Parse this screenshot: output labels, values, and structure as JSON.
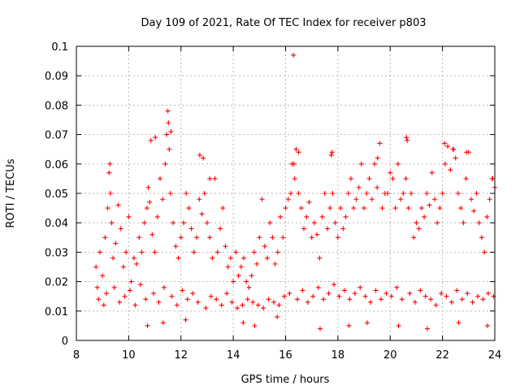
{
  "chart_data": {
    "type": "scatter",
    "title": "Day 109 of 2021, Rate Of TEC Index for receiver p803",
    "xlabel": "GPS time / hours",
    "ylabel": "ROTI / TECUs",
    "xlim": [
      8,
      24
    ],
    "ylim": [
      0,
      0.1
    ],
    "xticks": [
      8,
      10,
      12,
      14,
      16,
      18,
      20,
      22,
      24
    ],
    "yticks": [
      0,
      0.01,
      0.02,
      0.03,
      0.04,
      0.05,
      0.06,
      0.07,
      0.08,
      0.09,
      0.1
    ],
    "xtick_labels": [
      "8",
      "10",
      "12",
      "14",
      "16",
      "18",
      "20",
      "22",
      "24"
    ],
    "ytick_labels": [
      "0",
      "0.01",
      "0.02",
      "0.03",
      "0.04",
      "0.05",
      "0.06",
      "0.07",
      "0.08",
      "0.09",
      "0.1"
    ],
    "grid": true,
    "marker": "plus",
    "series_color": "#ff0000",
    "series": [
      {
        "x": [
          8.75,
          8.8,
          8.9,
          9.0,
          9.1,
          9.2,
          9.25,
          9.3,
          9.35,
          9.4,
          9.5,
          9.6,
          9.7,
          9.8,
          9.9,
          10.0,
          10.1,
          10.2,
          10.3,
          10.4,
          10.5,
          10.6,
          10.7,
          10.75,
          10.8,
          10.85,
          10.9,
          11.0,
          11.1,
          11.2,
          11.3,
          11.4,
          11.45,
          11.5,
          11.55,
          11.6,
          11.7,
          11.8,
          11.9,
          12.0,
          12.1,
          12.2,
          12.3,
          12.4,
          12.5,
          12.6,
          12.7,
          12.8,
          12.85,
          12.9,
          13.0,
          13.1,
          13.2,
          13.3,
          13.4,
          13.5,
          13.6,
          13.7,
          13.8,
          13.9,
          14.0,
          14.1,
          14.2,
          14.3,
          14.4,
          14.5,
          14.6,
          14.7,
          14.8,
          14.9,
          15.0,
          15.1,
          15.2,
          15.3,
          15.4,
          15.5,
          15.6,
          15.7,
          15.8,
          15.9,
          16.0,
          16.1,
          16.2,
          16.25,
          16.3,
          16.35,
          16.4,
          16.5,
          16.6,
          16.7,
          16.8,
          16.9,
          17.0,
          17.1,
          17.2,
          17.3,
          17.4,
          17.5,
          17.6,
          17.7,
          17.75,
          17.8,
          17.9,
          18.0,
          18.1,
          18.2,
          18.3,
          18.4,
          18.5,
          18.6,
          18.7,
          18.8,
          18.9,
          19.0,
          19.1,
          19.2,
          19.3,
          19.4,
          19.5,
          19.6,
          19.7,
          19.8,
          19.9,
          20.0,
          20.1,
          20.2,
          20.3,
          20.4,
          20.5,
          20.6,
          20.65,
          20.7,
          20.8,
          20.9,
          21.0,
          21.1,
          21.2,
          21.3,
          21.4,
          21.5,
          21.6,
          21.7,
          21.8,
          21.9,
          22.0,
          22.1,
          22.2,
          22.3,
          22.4,
          22.5,
          22.6,
          22.7,
          22.8,
          22.9,
          23.0,
          23.1,
          23.2,
          23.3,
          23.4,
          23.5,
          23.6,
          23.7,
          23.8,
          23.9,
          24.0,
          8.85,
          9.05,
          9.15,
          9.45,
          9.65,
          9.85,
          10.05,
          10.25,
          10.45,
          10.65,
          10.95,
          11.15,
          11.35,
          11.65,
          11.85,
          12.05,
          12.25,
          12.45,
          12.65,
          12.95,
          13.15,
          13.35,
          13.55,
          13.75,
          13.95,
          14.15,
          14.35,
          14.55,
          14.75,
          14.95,
          15.15,
          15.35,
          15.55,
          15.75,
          15.95,
          16.15,
          16.45,
          16.65,
          16.85,
          17.05,
          17.25,
          17.45,
          17.65,
          17.85,
          18.05,
          18.25,
          18.45,
          18.65,
          18.85,
          19.05,
          19.25,
          19.45,
          19.65,
          19.85,
          20.05,
          20.25,
          20.45,
          20.75,
          20.95,
          21.15,
          21.35,
          21.55,
          21.75,
          21.95,
          22.15,
          22.35,
          22.55,
          22.75,
          22.95,
          23.15,
          23.35,
          23.55,
          23.75,
          23.95,
          9.28,
          11.02,
          11.52,
          11.62,
          12.72,
          13.1,
          16.32,
          16.5,
          17.78,
          19.52,
          20.62,
          22.08,
          22.42,
          22.92,
          23.92,
          10.72,
          11.32,
          12.18,
          14.38,
          14.82,
          15.68,
          17.32,
          18.42,
          19.12,
          20.32,
          21.42,
          22.62,
          23.72
        ],
        "y": [
          0.025,
          0.018,
          0.03,
          0.022,
          0.035,
          0.045,
          0.057,
          0.05,
          0.04,
          0.028,
          0.033,
          0.046,
          0.038,
          0.025,
          0.03,
          0.042,
          0.02,
          0.028,
          0.026,
          0.035,
          0.03,
          0.04,
          0.045,
          0.052,
          0.047,
          0.068,
          0.036,
          0.03,
          0.042,
          0.055,
          0.048,
          0.06,
          0.07,
          0.078,
          0.065,
          0.05,
          0.04,
          0.032,
          0.028,
          0.035,
          0.04,
          0.05,
          0.045,
          0.038,
          0.03,
          0.035,
          0.048,
          0.043,
          0.062,
          0.05,
          0.04,
          0.035,
          0.028,
          0.055,
          0.03,
          0.038,
          0.045,
          0.032,
          0.025,
          0.028,
          0.02,
          0.03,
          0.022,
          0.025,
          0.028,
          0.02,
          0.018,
          0.022,
          0.03,
          0.026,
          0.035,
          0.048,
          0.032,
          0.028,
          0.04,
          0.035,
          0.026,
          0.03,
          0.042,
          0.035,
          0.045,
          0.048,
          0.05,
          0.06,
          0.097,
          0.055,
          0.065,
          0.05,
          0.045,
          0.038,
          0.042,
          0.047,
          0.035,
          0.04,
          0.036,
          0.028,
          0.042,
          0.05,
          0.038,
          0.045,
          0.063,
          0.05,
          0.04,
          0.035,
          0.045,
          0.038,
          0.042,
          0.05,
          0.055,
          0.045,
          0.048,
          0.052,
          0.06,
          0.045,
          0.05,
          0.055,
          0.048,
          0.06,
          0.052,
          0.067,
          0.045,
          0.05,
          0.05,
          0.057,
          0.055,
          0.045,
          0.06,
          0.048,
          0.05,
          0.055,
          0.068,
          0.045,
          0.05,
          0.035,
          0.04,
          0.038,
          0.045,
          0.042,
          0.05,
          0.046,
          0.057,
          0.048,
          0.04,
          0.045,
          0.05,
          0.06,
          0.066,
          0.058,
          0.065,
          0.062,
          0.05,
          0.045,
          0.04,
          0.055,
          0.064,
          0.048,
          0.044,
          0.05,
          0.04,
          0.035,
          0.03,
          0.042,
          0.048,
          0.055,
          0.052,
          0.014,
          0.012,
          0.016,
          0.018,
          0.013,
          0.015,
          0.017,
          0.012,
          0.019,
          0.014,
          0.016,
          0.013,
          0.018,
          0.015,
          0.012,
          0.017,
          0.014,
          0.016,
          0.013,
          0.011,
          0.015,
          0.014,
          0.012,
          0.016,
          0.013,
          0.011,
          0.012,
          0.014,
          0.013,
          0.012,
          0.011,
          0.014,
          0.013,
          0.012,
          0.015,
          0.016,
          0.014,
          0.017,
          0.013,
          0.015,
          0.018,
          0.014,
          0.016,
          0.019,
          0.015,
          0.017,
          0.014,
          0.016,
          0.018,
          0.015,
          0.013,
          0.017,
          0.014,
          0.016,
          0.015,
          0.018,
          0.014,
          0.016,
          0.013,
          0.017,
          0.015,
          0.014,
          0.012,
          0.016,
          0.015,
          0.013,
          0.017,
          0.014,
          0.016,
          0.013,
          0.015,
          0.014,
          0.016,
          0.015,
          0.06,
          0.069,
          0.074,
          0.071,
          0.063,
          0.055,
          0.06,
          0.064,
          0.064,
          0.062,
          0.069,
          0.067,
          0.065,
          0.064,
          0.055,
          0.005,
          0.006,
          0.007,
          0.006,
          0.005,
          0.008,
          0.004,
          0.005,
          0.006,
          0.005,
          0.004,
          0.006,
          0.005
        ]
      }
    ]
  }
}
